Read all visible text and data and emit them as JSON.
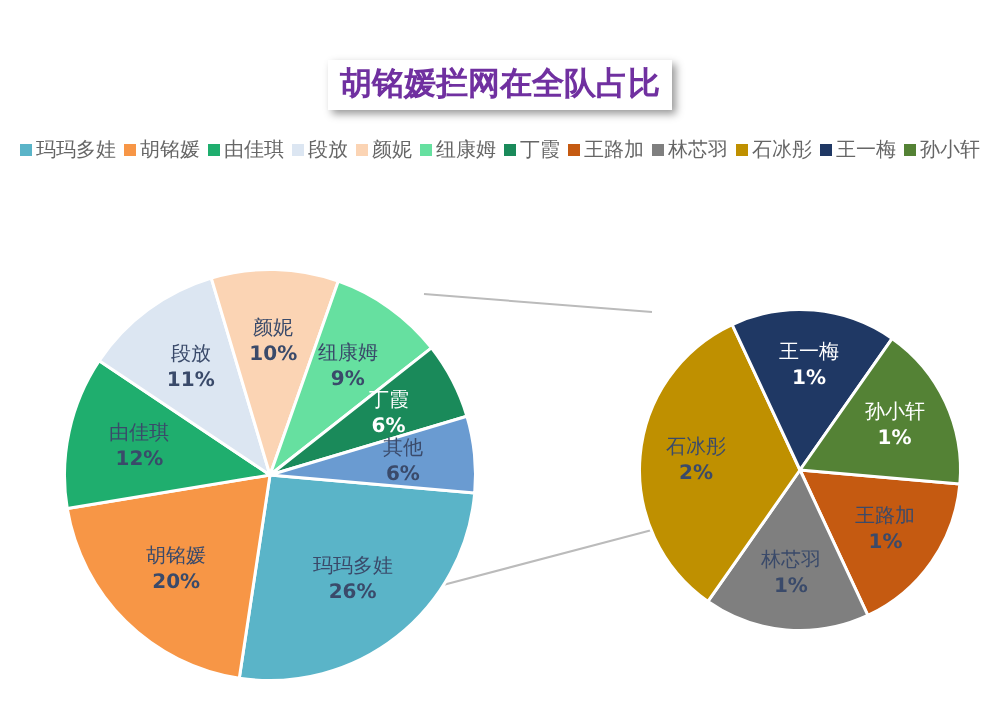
{
  "chart_data": [
    {
      "type": "pie",
      "title": "胡铭媛拦网在全队占比",
      "legend": "top",
      "categories": [
        "玛玛多娃",
        "胡铭媛",
        "由佳琪",
        "段放",
        "颜妮",
        "纽康姆",
        "丁霞",
        "其他"
      ],
      "values": [
        26,
        20,
        12,
        11,
        10,
        9,
        6,
        6
      ],
      "colors": [
        "#5ab4c8",
        "#f79646",
        "#1fae6e",
        "#dce6f2",
        "#fbd4b4",
        "#66e0a0",
        "#1a8a5a",
        "#6a9bd1"
      ],
      "value_labels": [
        "26%",
        "20%",
        "12%",
        "11%",
        "10%",
        "9%",
        "6%",
        "6%"
      ]
    },
    {
      "type": "pie",
      "legend": "top",
      "categories": [
        "王路加",
        "林芯羽",
        "石冰彤",
        "王一梅",
        "孙小轩"
      ],
      "values": [
        1,
        1,
        2,
        1,
        1
      ],
      "colors": [
        "#c55a11",
        "#7f7f7f",
        "#bf9000",
        "#1f3864",
        "#548235"
      ],
      "value_labels": [
        "1%",
        "1%",
        "2%",
        "1%",
        "1%"
      ]
    }
  ]
}
